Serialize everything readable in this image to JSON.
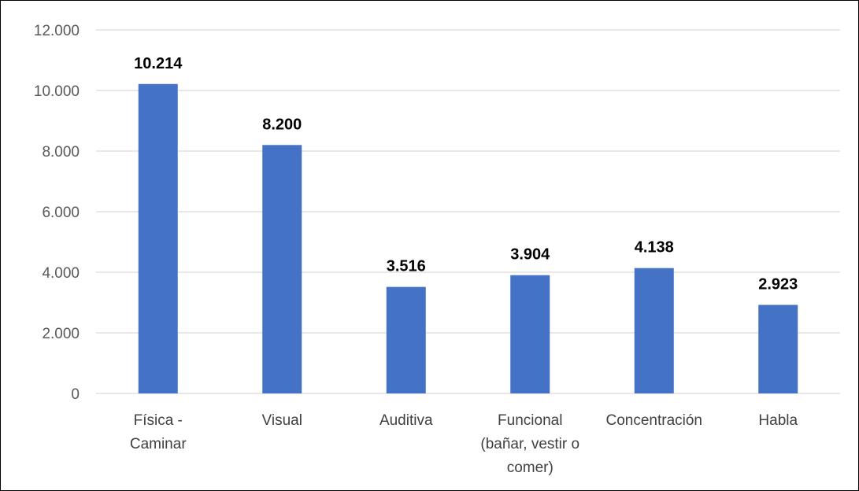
{
  "chart_data": {
    "type": "bar",
    "categories": [
      [
        "Física -",
        "Caminar"
      ],
      [
        "Visual"
      ],
      [
        "Auditiva"
      ],
      [
        "Funcional",
        "(bañar, vestir o",
        "comer)"
      ],
      [
        "Concentración"
      ],
      [
        "Habla"
      ]
    ],
    "values": [
      10214,
      8200,
      3516,
      3904,
      4138,
      2923
    ],
    "data_labels": [
      "10.214",
      "8.200",
      "3.516",
      "3.904",
      "4.138",
      "2.923"
    ],
    "y_ticks": [
      {
        "value": 0,
        "label": "0"
      },
      {
        "value": 2000,
        "label": "2.000"
      },
      {
        "value": 4000,
        "label": "4.000"
      },
      {
        "value": 6000,
        "label": "6.000"
      },
      {
        "value": 8000,
        "label": "8.000"
      },
      {
        "value": 10000,
        "label": "10.000"
      },
      {
        "value": 12000,
        "label": "12.000"
      }
    ],
    "ylim": [
      0,
      12000
    ],
    "grid": true,
    "legend": "none",
    "colors": {
      "bar": "#4472C4",
      "grid": "#D9D9D9"
    }
  }
}
